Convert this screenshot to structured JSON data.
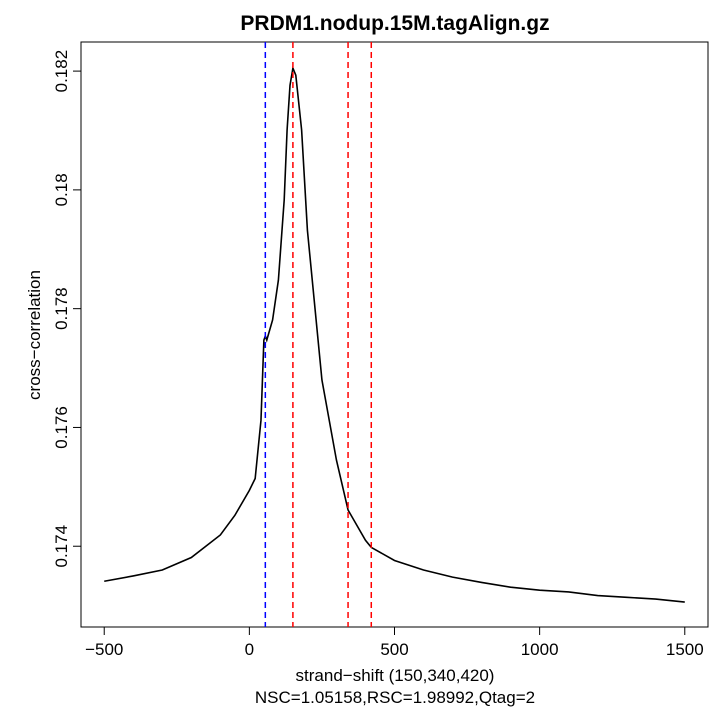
{
  "chart_data": {
    "type": "line",
    "title": "PRDM1.nodup.15M.tagAlign.gz",
    "xlabel": "strand−shift (150,340,420)",
    "subtitle": "NSC=1.05158,RSC=1.98992,Qtag=2",
    "ylabel": "cross−correlation",
    "x": [
      -500,
      -400,
      -300,
      -200,
      -100,
      -50,
      0,
      20,
      40,
      50,
      55,
      60,
      80,
      100,
      120,
      130,
      140,
      150,
      160,
      180,
      200,
      250,
      300,
      340,
      400,
      420,
      500,
      600,
      700,
      800,
      900,
      1000,
      1100,
      1200,
      1300,
      1400,
      1500
    ],
    "series": [
      {
        "color": "#000000",
        "values": [
          0.17341,
          0.1735,
          0.1736,
          0.17381,
          0.17419,
          0.17452,
          0.17494,
          0.17514,
          0.17612,
          0.17747,
          0.17754,
          0.17747,
          0.17781,
          0.17848,
          0.17983,
          0.18101,
          0.18176,
          0.18205,
          0.18193,
          0.18101,
          0.17932,
          0.1768,
          0.17545,
          0.17461,
          0.1741,
          0.17398,
          0.17376,
          0.1736,
          0.17348,
          0.17339,
          0.17331,
          0.17326,
          0.17323,
          0.17317,
          0.17314,
          0.17311,
          0.17306
        ]
      }
    ],
    "vlines": [
      {
        "value": 55,
        "color": "#0000ff"
      },
      {
        "value": 150,
        "color": "#ff0000"
      },
      {
        "value": 340,
        "color": "#ff0000"
      },
      {
        "value": 420,
        "color": "#ff0000"
      }
    ],
    "xlim": [
      -580,
      1580
    ],
    "ylim": [
      0.17264,
      0.18249
    ],
    "xticks": [
      {
        "value": -500,
        "label": "−500"
      },
      0,
      500,
      1000,
      1500
    ],
    "yticks": [
      0.174,
      0.176,
      0.178,
      0.18,
      {
        "value": 0.182,
        "label": "0.182"
      }
    ]
  }
}
